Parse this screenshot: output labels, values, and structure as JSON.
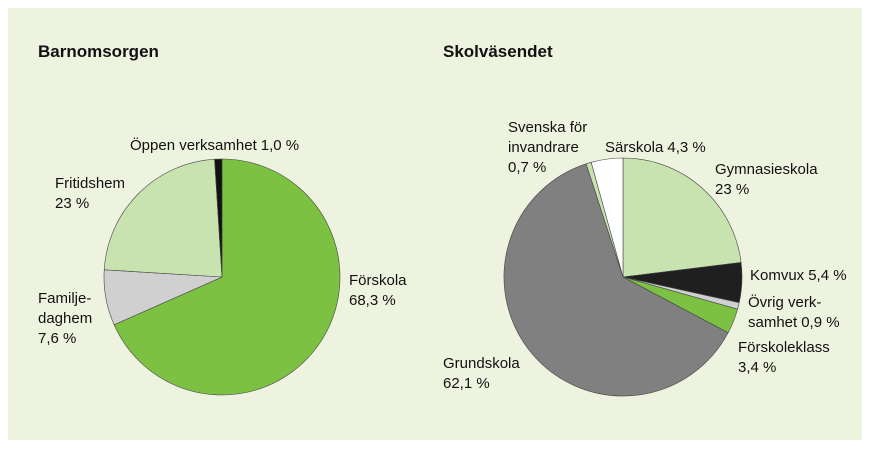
{
  "chart_data": [
    {
      "type": "pie",
      "title": "Barnomsorgen",
      "categories": [
        "Förskola",
        "Familje-\ndaghem",
        "Fritidshem",
        "Öppen verksamhet"
      ],
      "values": [
        68.3,
        7.6,
        23,
        1.0
      ],
      "value_labels": [
        "68,3 %",
        "7,6 %",
        "23 %",
        "1,0 %"
      ],
      "colors": [
        "#7dc142",
        "#d0d0d0",
        "#c8e3b0",
        "#111111"
      ]
    },
    {
      "type": "pie",
      "title": "Skolväsendet",
      "categories": [
        "Gymnasieskola",
        "Komvux",
        "Övrig verk-\nsamhet",
        "Förskoleklass",
        "Grundskola",
        "Svenska för\ninvandrare",
        "Särskola"
      ],
      "values": [
        23,
        5.4,
        0.9,
        3.4,
        62.1,
        0.7,
        4.3
      ],
      "value_labels": [
        "23 %",
        "5,4 %",
        "0,9 %",
        "3,4 %",
        "62,1 %",
        "0,7 %",
        "4,3 %"
      ],
      "colors": [
        "#c8e3b0",
        "#1f1f1f",
        "#d0d0d0",
        "#7dc142",
        "#808080",
        "#c8e3b0",
        "#ffffff"
      ]
    }
  ]
}
